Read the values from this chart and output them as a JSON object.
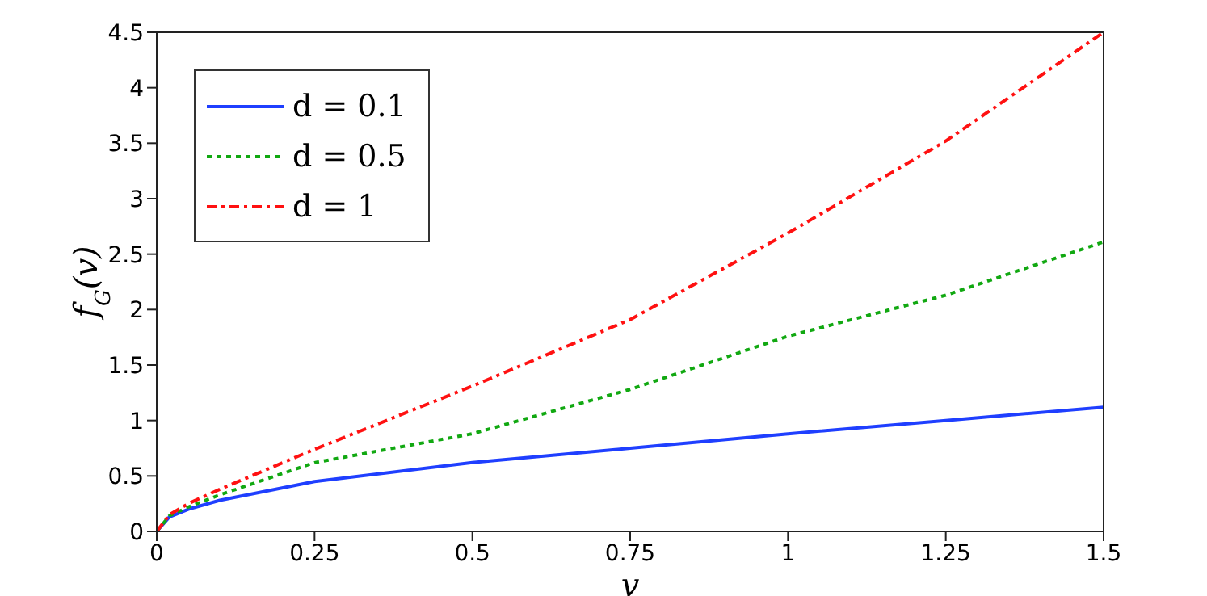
{
  "chart_data": {
    "type": "line",
    "xlabel": "v",
    "ylabel": "f$_{G}$(v)",
    "x": [
      0,
      0.02,
      0.05,
      0.1,
      0.25,
      0.5,
      0.75,
      1,
      1.25,
      1.5
    ],
    "series": [
      {
        "name": "d = 0.1",
        "color": "#1f3fff",
        "line_style": "solid",
        "values": [
          0,
          0.13,
          0.2,
          0.28,
          0.45,
          0.62,
          0.75,
          0.88,
          1.0,
          1.12
        ]
      },
      {
        "name": "d = 0.5",
        "color": "#11a811",
        "line_style": "dotted",
        "values": [
          0,
          0.14,
          0.22,
          0.33,
          0.62,
          0.88,
          1.28,
          1.76,
          2.13,
          2.61
        ]
      },
      {
        "name": "d = 1",
        "color": "#ff1111",
        "line_style": "dashed",
        "values": [
          0,
          0.15,
          0.25,
          0.38,
          0.74,
          1.31,
          1.91,
          2.69,
          3.52,
          4.5
        ]
      }
    ],
    "xlim": [
      0,
      1.5
    ],
    "xticks": [
      0,
      0.25,
      0.5,
      0.75,
      1,
      1.25,
      1.5
    ],
    "ylim": [
      0,
      4.5
    ],
    "yticks": [
      0,
      0.5,
      1,
      1.5,
      2,
      2.5,
      3,
      3.5,
      4,
      4.5
    ],
    "grid": false,
    "legend": "top left"
  }
}
